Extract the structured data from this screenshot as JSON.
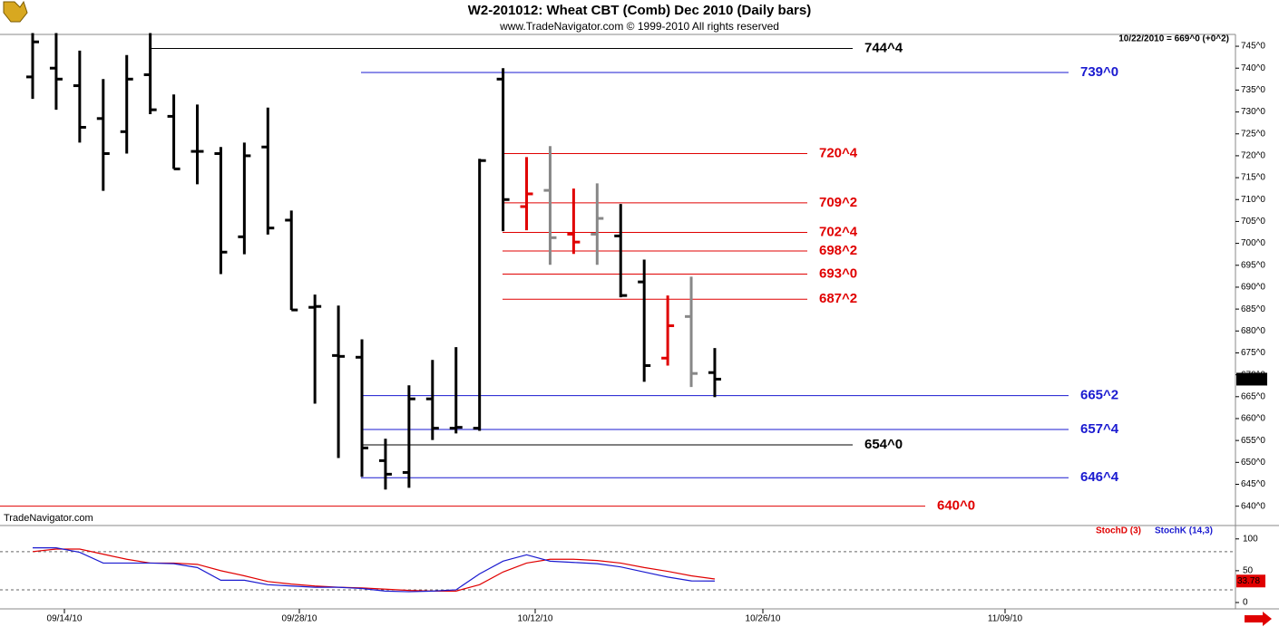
{
  "chart_data": [
    {
      "type": "ohlc",
      "title": "W2-201012:  Wheat CBT (Comb) Dec 2010  (Daily bars)",
      "subtitle": "www.TradeNavigator.com © 1999-2010 All rights reserved",
      "watermark": "TradeNavigator.com",
      "info": "10/22/2010 = 669^0 (+0^2)",
      "last_label": "669^0",
      "x_labels": [
        "09/14/10",
        "09/28/10",
        "10/12/10",
        "10/26/10",
        "11/09/10"
      ],
      "ylim": [
        636,
        747.7
      ],
      "yticks": [
        {
          "value": 745,
          "label": "745^0"
        },
        {
          "value": 740,
          "label": "740^0"
        },
        {
          "value": 735,
          "label": "735^0"
        },
        {
          "value": 730,
          "label": "730^0"
        },
        {
          "value": 725,
          "label": "725^0"
        },
        {
          "value": 720,
          "label": "720^0"
        },
        {
          "value": 715,
          "label": "715^0"
        },
        {
          "value": 710,
          "label": "710^0"
        },
        {
          "value": 705,
          "label": "705^0"
        },
        {
          "value": 700,
          "label": "700^0"
        },
        {
          "value": 695,
          "label": "695^0"
        },
        {
          "value": 690,
          "label": "690^0"
        },
        {
          "value": 685,
          "label": "685^0"
        },
        {
          "value": 680,
          "label": "680^0"
        },
        {
          "value": 675,
          "label": "675^0"
        },
        {
          "value": 670,
          "label": "670^0"
        },
        {
          "value": 665,
          "label": "665^0"
        },
        {
          "value": 660,
          "label": "660^0"
        },
        {
          "value": 655,
          "label": "655^0"
        },
        {
          "value": 650,
          "label": "650^0"
        },
        {
          "value": 645,
          "label": "645^0"
        },
        {
          "value": 640,
          "label": "640^0"
        }
      ],
      "open": [
        738,
        740,
        736,
        728.5,
        725.5,
        738.5,
        729,
        721,
        720.5,
        701.5,
        722,
        705.3,
        685.4,
        674.4,
        674,
        650.4,
        647.7,
        664.5,
        657.8,
        657.8,
        737.5,
        708.4,
        712.1,
        702.1,
        702.1,
        701.7,
        691.2,
        673.8,
        683.3,
        670.5
      ],
      "high": [
        748,
        748,
        744,
        737.5,
        743,
        748,
        734,
        731.7,
        722,
        723,
        731,
        707.5,
        688.3,
        685.8,
        678.1,
        655.4,
        667.6,
        673.4,
        676.3,
        719.3,
        740,
        719.7,
        722.2,
        712.5,
        713.7,
        709,
        696.3,
        688.1,
        692.4,
        676.1
      ],
      "low": [
        733,
        730.5,
        723,
        712,
        720.5,
        729.5,
        717,
        713.5,
        693,
        697.5,
        702,
        684.8,
        663.4,
        651,
        646.7,
        643.8,
        644.2,
        655.1,
        656.6,
        657.2,
        702.8,
        703,
        695.1,
        697.6,
        695.1,
        687.7,
        668.4,
        672.1,
        667.2,
        664.9
      ],
      "close": [
        746,
        737.5,
        726.5,
        720.5,
        737.5,
        730.5,
        717,
        721,
        698,
        720,
        703.5,
        684.8,
        685.6,
        674.2,
        653.3,
        647.3,
        664.5,
        657.8,
        658,
        718.9,
        710,
        711.3,
        701.3,
        700.3,
        705.7,
        688.1,
        672.1,
        681.2,
        670.3,
        669
      ],
      "colors": [
        "#000",
        "#000",
        "#000",
        "#000",
        "#000",
        "#000",
        "#000",
        "#000",
        "#000",
        "#000",
        "#000",
        "#000",
        "#000",
        "#000",
        "#000",
        "#000",
        "#000",
        "#000",
        "#000",
        "#000",
        "#000",
        "#e00000",
        "#888888",
        "#e00000",
        "#888888",
        "#000",
        "#000",
        "#e00000",
        "#888888",
        "#000"
      ],
      "levels": [
        {
          "value": 744.5,
          "label": "744^4",
          "color": "#000000"
        },
        {
          "value": 739,
          "label": "739^0",
          "color": "#1a1ad0"
        },
        {
          "value": 720.5,
          "label": "720^4",
          "color": "#e00000"
        },
        {
          "value": 709.25,
          "label": "709^2",
          "color": "#e00000"
        },
        {
          "value": 702.5,
          "label": "702^4",
          "color": "#e00000"
        },
        {
          "value": 698.25,
          "label": "698^2",
          "color": "#e00000"
        },
        {
          "value": 693,
          "label": "693^0",
          "color": "#e00000"
        },
        {
          "value": 687.25,
          "label": "687^2",
          "color": "#e00000"
        },
        {
          "value": 665.25,
          "label": "665^2",
          "color": "#1a1ad0"
        },
        {
          "value": 657.5,
          "label": "657^4",
          "color": "#1a1ad0"
        },
        {
          "value": 654,
          "label": "654^0",
          "color": "#000000"
        },
        {
          "value": 646.5,
          "label": "646^4",
          "color": "#1a1ad0"
        },
        {
          "value": 640,
          "label": "640^0",
          "color": "#e00000"
        }
      ]
    },
    {
      "type": "line",
      "ylim": [
        -10,
        112.5
      ],
      "yticks": [
        100,
        50,
        0
      ],
      "reference_lines": [
        80,
        20
      ],
      "series": [
        {
          "name": "StochD (3)",
          "color": "#e00000",
          "values": [
            80,
            84,
            84,
            76,
            68,
            62,
            62,
            60,
            50,
            42,
            33,
            29,
            26,
            24,
            23,
            21,
            19,
            18,
            18,
            28,
            48,
            62,
            68,
            68,
            66,
            62,
            55,
            49,
            42,
            37
          ]
        },
        {
          "name": "StochK (14,3)",
          "color": "#1a1ad0",
          "values": [
            86,
            86,
            79,
            62,
            62,
            62,
            61,
            55,
            35,
            35,
            28,
            26,
            24,
            24,
            22,
            18,
            17,
            18,
            20,
            45,
            65,
            75,
            65,
            63,
            61,
            56,
            48,
            40,
            34,
            33.78
          ]
        }
      ]
    }
  ]
}
